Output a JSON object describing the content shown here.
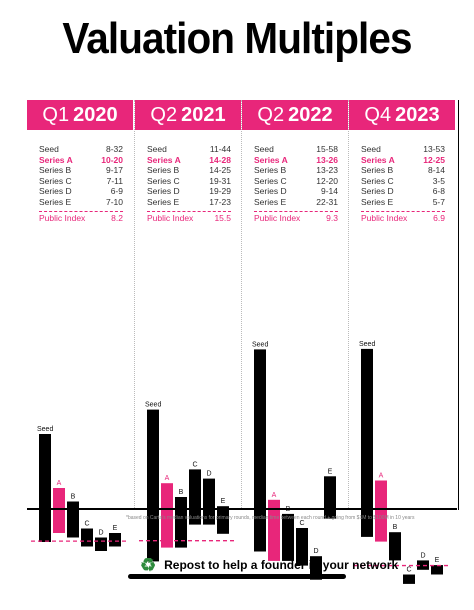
{
  "title": "Valuation Multiples",
  "footnote": "*based on Carta's median valuations for primary rounds, median time between each round + going from $1M to $100M in 10 years",
  "repost": {
    "icon": "recycle-icon",
    "text": "Repost to help a founder in your network"
  },
  "colors": {
    "accent": "#e8267a",
    "bar": "#000000"
  },
  "chart_data": [
    {
      "type": "bar",
      "quarter": "Q1",
      "year": "2020",
      "rows": [
        [
          "Seed",
          "8-32"
        ],
        [
          "Series A",
          "10-20"
        ],
        [
          "Series B",
          "9-17"
        ],
        [
          "Series C",
          "7-11"
        ],
        [
          "Series D",
          "6-9"
        ],
        [
          "Series E",
          "7-10"
        ]
      ],
      "public_index_label": "Public Index",
      "public_index": "8.2",
      "bars": [
        {
          "label": "Seed",
          "lo": 8,
          "hi": 32
        },
        {
          "label": "A",
          "lo": 10,
          "hi": 20
        },
        {
          "label": "B",
          "lo": 9,
          "hi": 17
        },
        {
          "label": "C",
          "lo": 7,
          "hi": 11
        },
        {
          "label": "D",
          "lo": 6,
          "hi": 9
        },
        {
          "label": "E",
          "lo": 7,
          "hi": 10
        }
      ],
      "index_value": 8.2
    },
    {
      "type": "bar",
      "quarter": "Q2",
      "year": "2021",
      "rows": [
        [
          "Seed",
          "11-44"
        ],
        [
          "Series A",
          "14-28"
        ],
        [
          "Series B",
          "14-25"
        ],
        [
          "Series C",
          "19-31"
        ],
        [
          "Series D",
          "19-29"
        ],
        [
          "Series E",
          "17-23"
        ]
      ],
      "public_index_label": "Public Index",
      "public_index": "15.5",
      "bars": [
        {
          "label": "Seed",
          "lo": 11,
          "hi": 44
        },
        {
          "label": "A",
          "lo": 14,
          "hi": 28
        },
        {
          "label": "B",
          "lo": 14,
          "hi": 25
        },
        {
          "label": "C",
          "lo": 19,
          "hi": 31
        },
        {
          "label": "D",
          "lo": 19,
          "hi": 29
        },
        {
          "label": "E",
          "lo": 17,
          "hi": 23
        }
      ],
      "index_value": 15.5
    },
    {
      "type": "bar",
      "quarter": "Q2",
      "year": "2022",
      "rows": [
        [
          "Seed",
          "15-58"
        ],
        [
          "Series A",
          "13-26"
        ],
        [
          "Series B",
          "13-23"
        ],
        [
          "Series C",
          "12-20"
        ],
        [
          "Series D",
          "9-14"
        ],
        [
          "Series E",
          "22-31"
        ]
      ],
      "public_index_label": "Public Index",
      "public_index": "9.3",
      "bars": [
        {
          "label": "Seed",
          "lo": 15,
          "hi": 58
        },
        {
          "label": "A",
          "lo": 13,
          "hi": 26
        },
        {
          "label": "B",
          "lo": 13,
          "hi": 23
        },
        {
          "label": "C",
          "lo": 12,
          "hi": 20
        },
        {
          "label": "D",
          "lo": 9,
          "hi": 14
        },
        {
          "label": "E",
          "lo": 22,
          "hi": 31
        }
      ],
      "index_value": 9.3
    },
    {
      "type": "bar",
      "quarter": "Q4",
      "year": "2023",
      "rows": [
        [
          "Seed",
          "13-53"
        ],
        [
          "Series A",
          "12-25"
        ],
        [
          "Series B",
          "8-14"
        ],
        [
          "Series C",
          "3-5"
        ],
        [
          "Series D",
          "6-8"
        ],
        [
          "Series E",
          "5-7"
        ]
      ],
      "public_index_label": "Public Index",
      "public_index": "6.9",
      "bars": [
        {
          "label": "Seed",
          "lo": 13,
          "hi": 53
        },
        {
          "label": "A",
          "lo": 12,
          "hi": 25
        },
        {
          "label": "B",
          "lo": 8,
          "hi": 14
        },
        {
          "label": "C",
          "lo": 3,
          "hi": 5
        },
        {
          "label": "D",
          "lo": 6,
          "hi": 8
        },
        {
          "label": "E",
          "lo": 5,
          "hi": 7
        }
      ],
      "index_value": 6.9
    }
  ]
}
